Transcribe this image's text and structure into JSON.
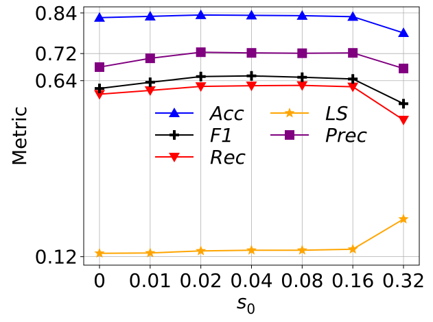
{
  "chart_data": {
    "type": "line",
    "title": "",
    "xlabel_base": "s",
    "xlabel_sub": "0",
    "ylabel": "Metric",
    "categories": [
      "0",
      "0.01",
      "0.02",
      "0.04",
      "0.08",
      "0.16",
      "0.32"
    ],
    "ylim": [
      0.095,
      0.858
    ],
    "yticks": [
      0.12,
      0.64,
      0.72,
      0.84
    ],
    "ytick_labels": [
      "0.12",
      "0.64",
      "0.72",
      "0.84"
    ],
    "grid": true,
    "legend": "center, two columns",
    "series": [
      {
        "name": "Acc",
        "color": "#0000ff",
        "marker": "triangle-up",
        "values": [
          0.826,
          0.83,
          0.834,
          0.833,
          0.832,
          0.829,
          0.781
        ]
      },
      {
        "name": "Rec",
        "color": "#ff0000",
        "marker": "triangle-down",
        "values": [
          0.6,
          0.611,
          0.623,
          0.625,
          0.626,
          0.622,
          0.524
        ]
      },
      {
        "name": "Prec",
        "color": "#800080",
        "marker": "square",
        "values": [
          0.68,
          0.706,
          0.724,
          0.722,
          0.721,
          0.722,
          0.676
        ]
      },
      {
        "name": "F1",
        "color": "#000000",
        "marker": "plus",
        "values": [
          0.617,
          0.635,
          0.652,
          0.654,
          0.65,
          0.645,
          0.572
        ]
      },
      {
        "name": "LS",
        "color": "#ffa500",
        "marker": "star",
        "values": [
          0.13,
          0.131,
          0.137,
          0.139,
          0.139,
          0.142,
          0.231
        ]
      }
    ],
    "legend_order": [
      0,
      3,
      1,
      4,
      2
    ]
  }
}
